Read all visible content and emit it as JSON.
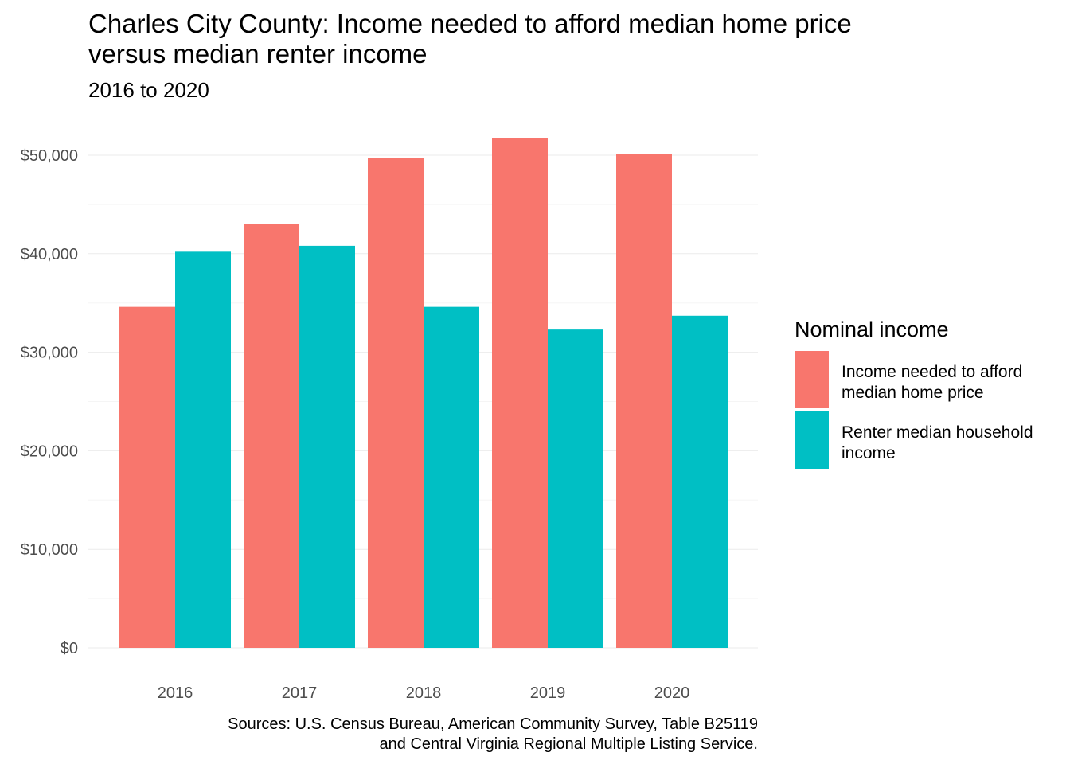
{
  "chart_data": {
    "type": "bar",
    "title_lines": [
      "Charles City County: Income needed to afford median home price",
      "versus median renter income"
    ],
    "subtitle": "2016 to 2020",
    "categories": [
      "2016",
      "2017",
      "2018",
      "2019",
      "2020"
    ],
    "series": [
      {
        "name_lines": [
          "Income needed to afford",
          "median home price"
        ],
        "color": "#F8766D",
        "values": [
          34600,
          43000,
          49700,
          51700,
          50100
        ]
      },
      {
        "name_lines": [
          "Renter median household",
          "income"
        ],
        "color": "#00BFC4",
        "values": [
          40200,
          40800,
          34600,
          32300,
          33700
        ]
      }
    ],
    "ylim": [
      0,
      52000
    ],
    "y_ticks": [
      {
        "value": 0,
        "label": "$0"
      },
      {
        "value": 10000,
        "label": "$10,000"
      },
      {
        "value": 20000,
        "label": "$20,000"
      },
      {
        "value": 30000,
        "label": "$30,000"
      },
      {
        "value": 40000,
        "label": "$40,000"
      },
      {
        "value": 50000,
        "label": "$50,000"
      }
    ],
    "grid": true,
    "legend": {
      "title": "Nominal income",
      "placement": "right"
    },
    "caption_lines": [
      "Sources: U.S. Census Bureau, American Community Survey, Table B25119",
      "and Central Virginia Regional Multiple Listing Service."
    ]
  }
}
